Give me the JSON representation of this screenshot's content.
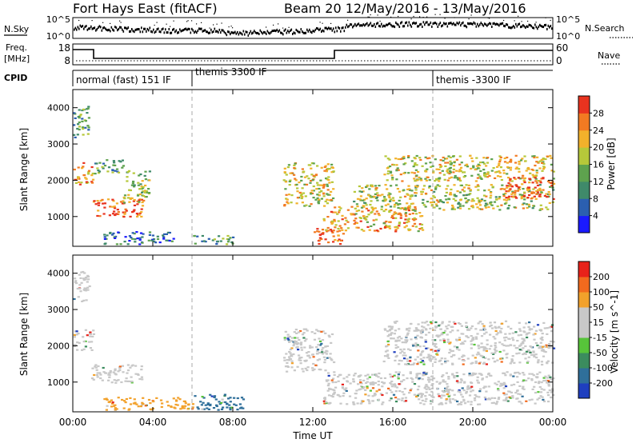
{
  "header": {
    "station": "Fort Hays East (fitACF)",
    "beam_and_date": "Beam 20  12/May/2016 - 13/May/2016"
  },
  "top_panels": {
    "nsky_label": "N.Sky",
    "nsearch_label": "N.Search",
    "noise_tick_high": "10^5",
    "noise_tick_low": "10^0",
    "noise_tick_high_right": "10^5",
    "noise_tick_low_right": "10^0",
    "freq_label": "Freq.",
    "freq_unit": "[MHz]",
    "freq_tick_high": "18",
    "freq_tick_low": "8",
    "nave_tick_high": "60",
    "nave_tick_low": "0",
    "nave_label": "Nave",
    "cpid_label": "CPID",
    "cpid_segments": [
      "normal (fast) 151 IF",
      "themis 3300 IF",
      "themis -3300 IF"
    ]
  },
  "chart_data": [
    {
      "type": "heatmap",
      "name": "power",
      "ylabel": "Slant Range [km]",
      "xlabel": "",
      "yticks": [
        "1000",
        "2000",
        "3000",
        "4000"
      ],
      "ylim": [
        180,
        4500
      ],
      "xlim": [
        0,
        24
      ],
      "colorbar": {
        "label": "Power [dB]",
        "ticks": [
          "4",
          "8",
          "12",
          "16",
          "20",
          "24",
          "28"
        ],
        "colors": [
          "#1a1aff",
          "#2b5fb0",
          "#3f8a6a",
          "#5ea24e",
          "#b6c83a",
          "#f2b12b",
          "#f27a22",
          "#e8331f"
        ]
      },
      "regions": [
        {
          "t": [
            0.0,
            0.8
          ],
          "r": [
            3200,
            4100
          ],
          "level": 0.35
        },
        {
          "t": [
            0.0,
            1.0
          ],
          "r": [
            1900,
            2500
          ],
          "level": 0.75
        },
        {
          "t": [
            0.9,
            3.5
          ],
          "r": [
            1000,
            1500
          ],
          "level": 0.85
        },
        {
          "t": [
            2.5,
            3.8
          ],
          "r": [
            1400,
            2300
          ],
          "level": 0.55
        },
        {
          "t": [
            1.0,
            2.5
          ],
          "r": [
            2200,
            2600
          ],
          "level": 0.4
        },
        {
          "t": [
            1.5,
            5.0
          ],
          "r": [
            250,
            600
          ],
          "level": 0.25
        },
        {
          "t": [
            6.0,
            8.0
          ],
          "r": [
            250,
            500
          ],
          "level": 0.35
        },
        {
          "t": [
            10.5,
            13.0
          ],
          "r": [
            1300,
            2500
          ],
          "level": 0.6
        },
        {
          "t": [
            12.0,
            13.5
          ],
          "r": [
            250,
            700
          ],
          "level": 0.95
        },
        {
          "t": [
            12.5,
            17.5
          ],
          "r": [
            600,
            1300
          ],
          "level": 0.7
        },
        {
          "t": [
            14.0,
            24.0
          ],
          "r": [
            1200,
            1900
          ],
          "level": 0.55
        },
        {
          "t": [
            15.5,
            24.0
          ],
          "r": [
            2000,
            2700
          ],
          "level": 0.6
        },
        {
          "t": [
            21.5,
            24.0
          ],
          "r": [
            1500,
            2100
          ],
          "level": 0.85
        }
      ]
    },
    {
      "type": "heatmap",
      "name": "velocity",
      "ylabel": "Slant Range [km]",
      "xlabel": "Time UT",
      "xticks": [
        "00:00",
        "04:00",
        "08:00",
        "12:00",
        "16:00",
        "20:00",
        "00:00"
      ],
      "yticks": [
        "1000",
        "2000",
        "3000",
        "4000"
      ],
      "ylim": [
        180,
        4500
      ],
      "xlim": [
        0,
        24
      ],
      "colorbar": {
        "label": "Velocity [m s^-1]",
        "ticks": [
          "200",
          "100",
          "50",
          "15",
          "-15",
          "-50",
          "-100",
          "-200"
        ],
        "colors": [
          "#1f3fbf",
          "#2f6f9a",
          "#3b8c5e",
          "#57c43a",
          "#c8c8c8",
          "#c8c8c8",
          "#f2a12b",
          "#f26a1e",
          "#e8221a"
        ]
      },
      "regions": [
        {
          "t": [
            0.0,
            0.8
          ],
          "r": [
            3200,
            4100
          ],
          "level": 0.5
        },
        {
          "t": [
            0.0,
            1.0
          ],
          "r": [
            1900,
            2500
          ],
          "level": 0.5
        },
        {
          "t": [
            0.9,
            3.5
          ],
          "r": [
            1000,
            1500
          ],
          "level": 0.5
        },
        {
          "t": [
            1.5,
            6.0
          ],
          "r": [
            250,
            600
          ],
          "level": 0.75
        },
        {
          "t": [
            6.0,
            8.5
          ],
          "r": [
            250,
            700
          ],
          "level": 0.2
        },
        {
          "t": [
            10.5,
            13.0
          ],
          "r": [
            1300,
            2500
          ],
          "level": 0.5
        },
        {
          "t": [
            12.5,
            24.0
          ],
          "r": [
            400,
            1300
          ],
          "level": 0.5
        },
        {
          "t": [
            15.5,
            24.0
          ],
          "r": [
            1500,
            2700
          ],
          "level": 0.5
        }
      ]
    }
  ]
}
